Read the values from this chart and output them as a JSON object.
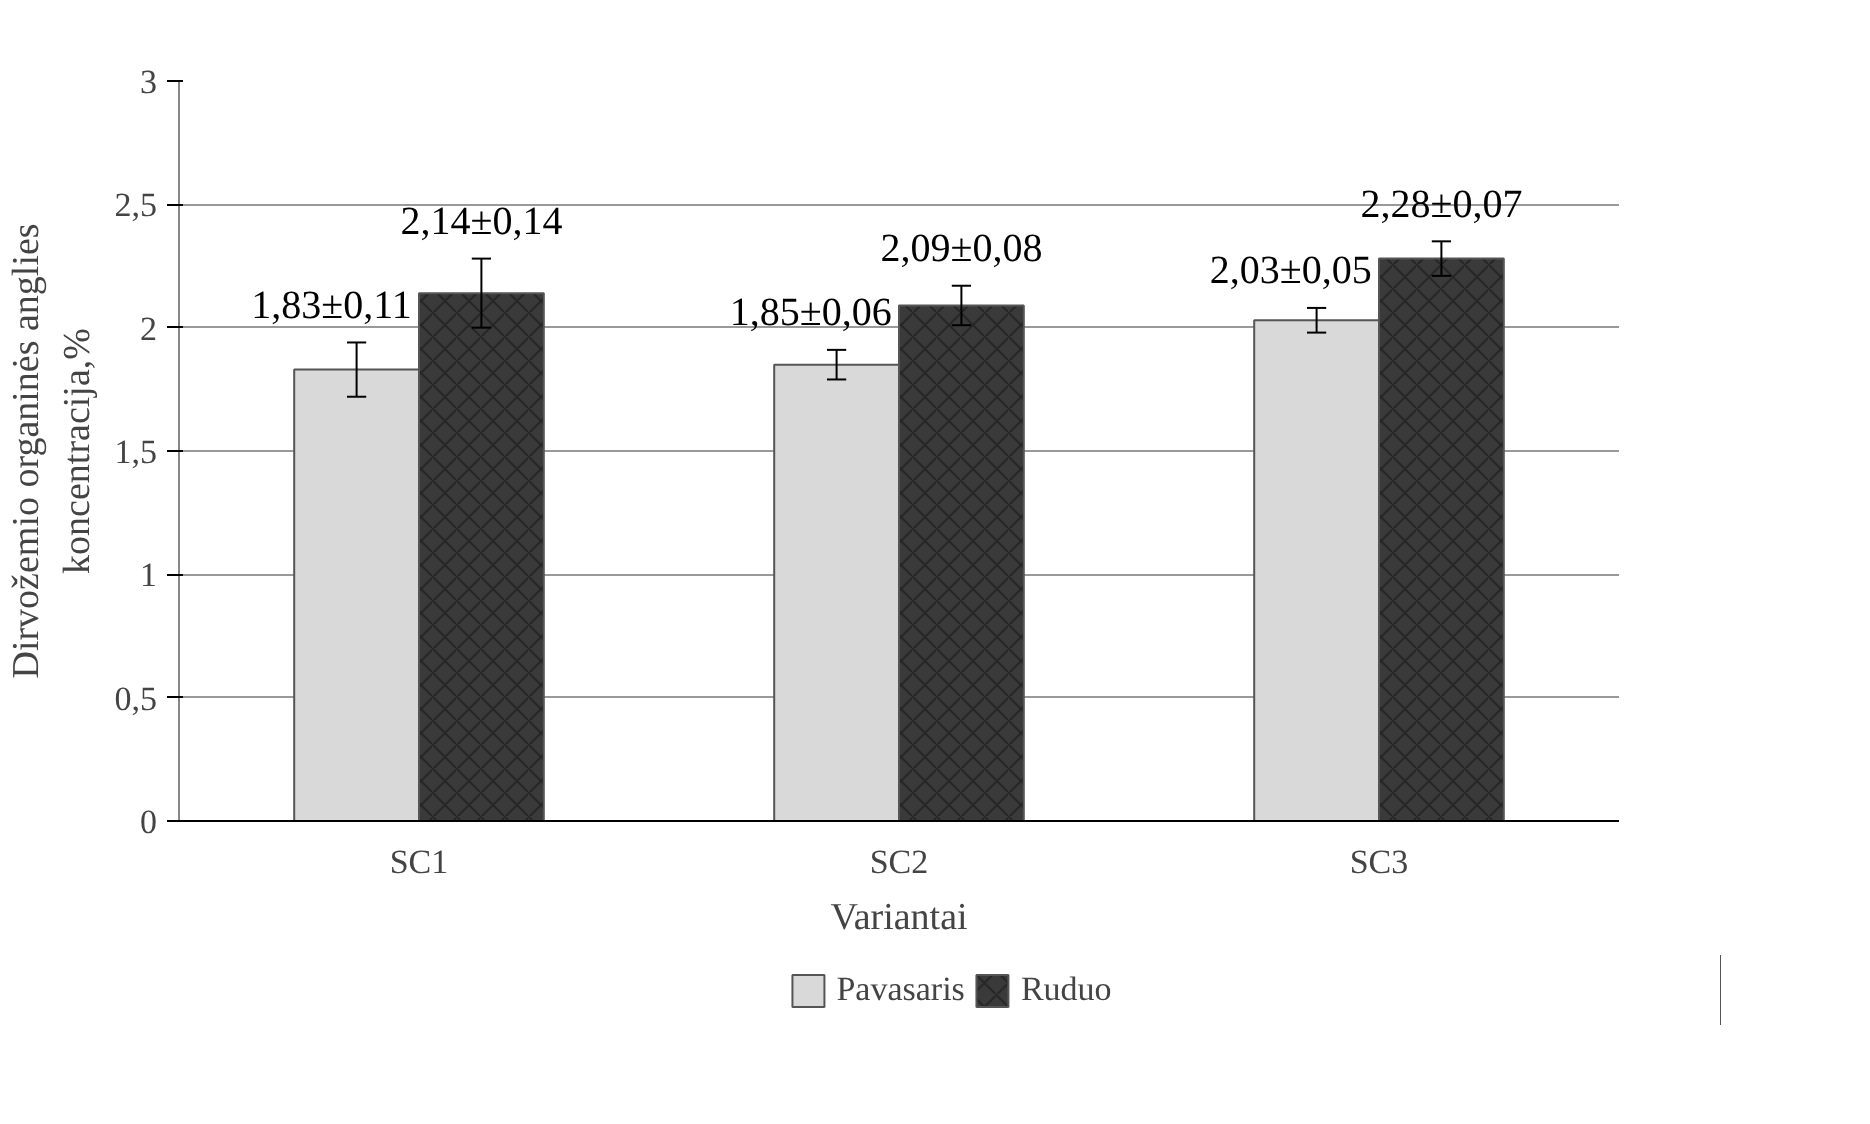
{
  "chart_data": {
    "type": "bar",
    "xlabel": "Variantai",
    "ylabel": "Dirvožemio organinės anglies\nkoncentracija,%",
    "categories": [
      "SC1",
      "SC2",
      "SC3"
    ],
    "series": [
      {
        "name": "Pavasaris",
        "color": "#d9d9d9",
        "values": [
          1.83,
          1.85,
          2.03
        ],
        "errors": [
          0.11,
          0.06,
          0.05
        ],
        "value_labels": [
          "1,83±0,11",
          "1,85±0,06",
          "2,03±0,05"
        ]
      },
      {
        "name": "Ruduo",
        "color": "#3a3a3a",
        "values": [
          2.14,
          2.09,
          2.28
        ],
        "errors": [
          0.14,
          0.08,
          0.07
        ],
        "value_labels": [
          "2,14±0,14",
          "2,09±0,08",
          "2,28±0,07"
        ]
      }
    ],
    "ylim": [
      0,
      3
    ],
    "yticks": [
      0,
      {
        "value": 0.5,
        "label": "0,5"
      },
      1,
      {
        "value": 1.5,
        "label": "1,5"
      },
      2,
      {
        "value": 2.5,
        "label": "2,5"
      },
      3
    ],
    "grid": "y",
    "legend": "bottom"
  }
}
